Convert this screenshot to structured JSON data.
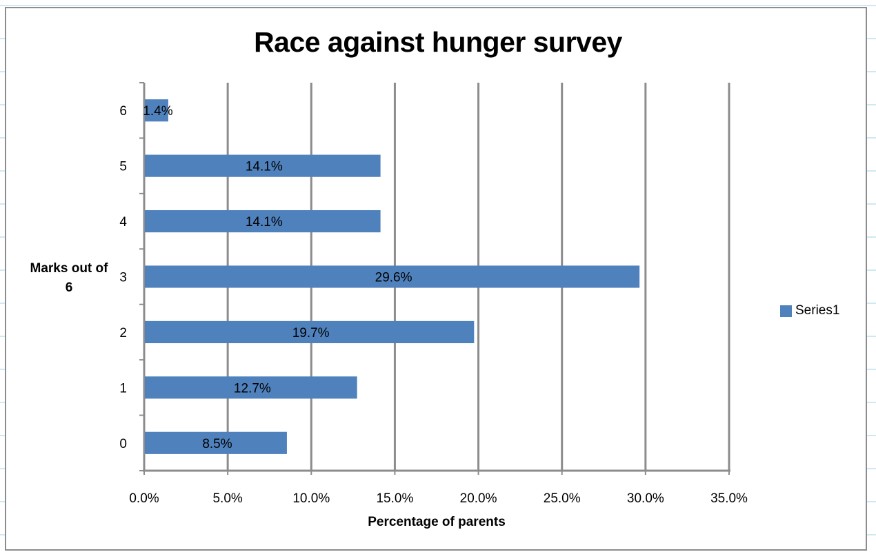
{
  "colors": {
    "bar": "#4f81bd",
    "grid": "#8c8c8c",
    "sheet_line": "#9fd3e6"
  },
  "chart_data": {
    "type": "bar",
    "orientation": "horizontal",
    "title": "Race against hunger survey",
    "xlabel": "Percentage of parents",
    "ylabel": "Marks out of 6",
    "categories": [
      "0",
      "1",
      "2",
      "3",
      "4",
      "5",
      "6"
    ],
    "series": [
      {
        "name": "Series1",
        "values": [
          8.5,
          12.7,
          19.7,
          29.6,
          14.1,
          14.1,
          1.4
        ],
        "data_labels": [
          "8.5%",
          "12.7%",
          "19.7%",
          "29.6%",
          "14.1%",
          "14.1%",
          "1.4%"
        ]
      }
    ],
    "xlim": [
      0,
      35
    ],
    "xticks": [
      "0.0%",
      "5.0%",
      "10.0%",
      "15.0%",
      "20.0%",
      "25.0%",
      "30.0%",
      "35.0%"
    ],
    "grid": "vertical major gridlines",
    "legend": "right"
  }
}
